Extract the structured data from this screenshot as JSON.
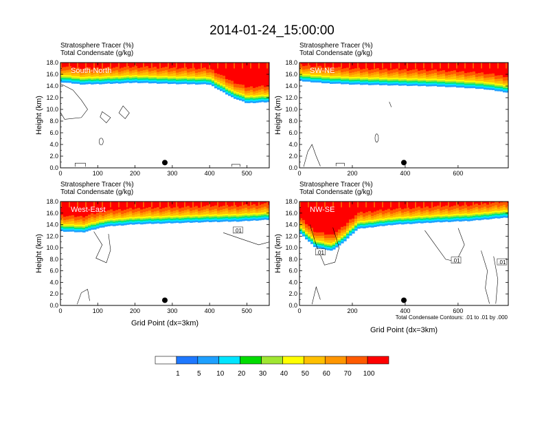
{
  "chart_data": {
    "type": "heatmap",
    "title": "2014-01-24_15:00:00",
    "shared": {
      "subtitle_line1": "Stratosphere Tracer   (%)",
      "subtitle_line2": "Total Condensate   (g/kg)",
      "ylabel": "Height (km)",
      "xlabel": "Grid Point (dx=3km)",
      "ylim": [
        0,
        18
      ],
      "y_ticks": [
        "0.0",
        "2.0",
        "4.0",
        "6.0",
        "8.0",
        "10.0",
        "12.0",
        "14.0",
        "16.0",
        "18.0"
      ],
      "contour_note": "Total Condensate Contours: .01 to .01 by .000"
    },
    "panels": [
      {
        "name": "South-North",
        "xlim": [
          0,
          560
        ],
        "x_ticks": [
          "0",
          "100",
          "200",
          "300",
          "400",
          "500"
        ],
        "x_tick_values": [
          0,
          100,
          200,
          300,
          400,
          500
        ],
        "marker_x": 280,
        "tracer_front_km": [
          [
            0,
            14.6
          ],
          [
            60,
            14.2
          ],
          [
            120,
            14.3
          ],
          [
            200,
            14.5
          ],
          [
            300,
            14.3
          ],
          [
            400,
            14.2
          ],
          [
            460,
            12.0
          ],
          [
            500,
            11.0
          ],
          [
            560,
            11.2
          ]
        ],
        "condensate_contour_label": ""
      },
      {
        "name": "SW-NE",
        "xlim": [
          0,
          790
        ],
        "x_ticks": [
          "0",
          "200",
          "400",
          "600"
        ],
        "x_tick_values": [
          0,
          200,
          400,
          600
        ],
        "marker_x": 395,
        "tracer_front_km": [
          [
            0,
            14.8
          ],
          [
            100,
            14.4
          ],
          [
            200,
            14.2
          ],
          [
            300,
            14.1
          ],
          [
            400,
            14.0
          ],
          [
            500,
            13.9
          ],
          [
            600,
            13.7
          ],
          [
            700,
            13.4
          ],
          [
            790,
            12.8
          ]
        ],
        "condensate_contour_label": ""
      },
      {
        "name": "West-East",
        "xlim": [
          0,
          560
        ],
        "x_ticks": [
          "0",
          "100",
          "200",
          "300",
          "400",
          "500"
        ],
        "x_tick_values": [
          0,
          100,
          200,
          300,
          400,
          500
        ],
        "marker_x": 280,
        "tracer_front_km": [
          [
            0,
            12.8
          ],
          [
            60,
            12.6
          ],
          [
            120,
            13.6
          ],
          [
            200,
            14.0
          ],
          [
            300,
            14.2
          ],
          [
            400,
            14.4
          ],
          [
            480,
            14.5
          ],
          [
            560,
            14.8
          ]
        ],
        "condensate_contour_label": ".01"
      },
      {
        "name": "NW-SE",
        "xlim": [
          0,
          790
        ],
        "x_ticks": [
          "0",
          "200",
          "400",
          "600"
        ],
        "x_tick_values": [
          0,
          200,
          400,
          600
        ],
        "marker_x": 395,
        "tracer_front_km": [
          [
            0,
            12.5
          ],
          [
            60,
            10.0
          ],
          [
            120,
            9.4
          ],
          [
            160,
            10.6
          ],
          [
            220,
            13.2
          ],
          [
            350,
            13.9
          ],
          [
            500,
            14.3
          ],
          [
            650,
            14.6
          ],
          [
            790,
            15.2
          ]
        ],
        "condensate_contour_label": ".01"
      }
    ],
    "colorbar": {
      "levels": [
        "1",
        "5",
        "10",
        "20",
        "30",
        "40",
        "50",
        "60",
        "70",
        "100"
      ],
      "colors": [
        "#ffffff",
        "#1e78ff",
        "#1ea0ff",
        "#00e5ff",
        "#00e673",
        "#00dc00",
        "#a0e632",
        "#ffff00",
        "#ffc000",
        "#ff9600",
        "#ff5a00",
        "#ff0000"
      ]
    }
  }
}
